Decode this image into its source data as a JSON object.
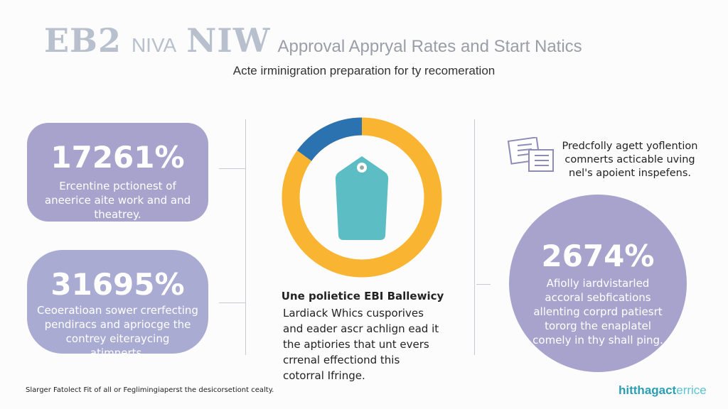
{
  "title": {
    "part1": "EB2",
    "part2": "NIVA",
    "part3": "NIW",
    "part4": "Approval Appryal Rates and Start Natics"
  },
  "subtitle": "Acte irminigration preparation for ty recomeration",
  "left_stats": [
    {
      "value": "17261%",
      "text": "Ercentine pctionest of aneerice aite work and and theatrey."
    },
    {
      "value": "31695%",
      "text": "Ceoeratioan sower crerfecting pendiracs and apriocge the contrey eiteraycing atimnerts."
    }
  ],
  "donut": {
    "fraction_blue": 0.15,
    "colors": {
      "main": "#f9b531",
      "accent": "#2a72b0",
      "tag": "#5dbdc4"
    },
    "icon": "price-tag-icon"
  },
  "center_caption": {
    "title": "Une polietice EBI Ballewicy",
    "body": "Lardiack Whics cusporives and eader ascr achlign ead it the aptiories that unt evers crrenal effectiond this cotorral Ifringe."
  },
  "right_note": {
    "icon": "documents-icon",
    "text": "Predcfolly agett yoflention comnerts acticable uving nel's apoient inspefens."
  },
  "right_stat": {
    "value": "2674%",
    "text": "Afiolly iardvistarled accoral sebfications allenting corprd patiesrt tororg the enaplatel comely in thy shall ping."
  },
  "footer": {
    "note": "Slarger Fatolect Fit of all or Feglimingiaperst the desicorsetiont cealty.",
    "brand_a": "hitthagact",
    "brand_b": "errice"
  },
  "colors": {
    "stat_fill": "#a7a3cc",
    "brand": "#2fa7b8"
  }
}
